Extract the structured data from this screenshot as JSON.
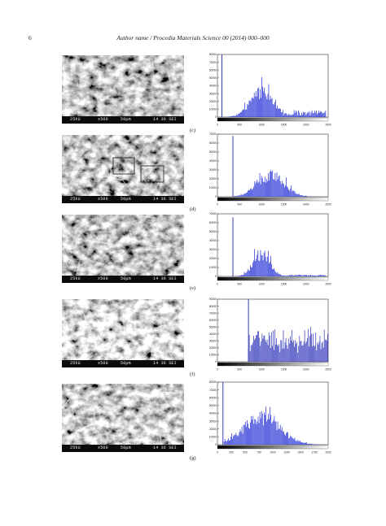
{
  "header": {
    "page_number": "6",
    "running_title": "Author name / Procedia Materials Science 00 (2014) 000–000"
  },
  "panels": [
    {
      "label": "(c)",
      "sem_bar": {
        "kv": "25kU",
        "mag": "x500",
        "scale": "50µm",
        "code": "14 36 SEI"
      }
    },
    {
      "label": "(d)",
      "sem_bar": {
        "kv": "25kU",
        "mag": "x500",
        "scale": "50µm",
        "code": "14 36 SEI"
      }
    },
    {
      "label": "(e)",
      "sem_bar": {
        "kv": "25kU",
        "mag": "x500",
        "scale": "50µm",
        "code": "14 36 SEI"
      }
    },
    {
      "label": "(f)",
      "sem_bar": {
        "kv": "25kU",
        "mag": "x500",
        "scale": "50µm",
        "code": "14 36 SEI"
      }
    },
    {
      "label": "(g)",
      "sem_bar": {
        "kv": "25kU",
        "mag": "x500",
        "scale": "50µm",
        "code": "14 36 SEI"
      }
    }
  ],
  "chart_data": [
    {
      "type": "bar",
      "panel": "(c)",
      "color": "#1f2bd6",
      "xlim": [
        0,
        2500
      ],
      "x_ticks": [
        0,
        500,
        1000,
        1500,
        2000,
        2500
      ],
      "ylim": [
        0,
        80000
      ],
      "y_ticks": [
        0,
        10000,
        20000,
        30000,
        40000,
        50000,
        60000,
        70000,
        80000
      ],
      "spike_x": 100,
      "spike_value": 80000,
      "hump_center": 1000,
      "hump_width": 550,
      "hump_peak": 38000,
      "hump_range": [
        100,
        1500
      ],
      "tail_value": 7000,
      "tail_range": [
        1500,
        2450
      ]
    },
    {
      "type": "bar",
      "panel": "(d)",
      "color": "#1f2bd6",
      "xlim": [
        0,
        2500
      ],
      "x_ticks": [
        0,
        500,
        1000,
        1500,
        2000,
        2500
      ],
      "ylim": [
        0,
        70000
      ],
      "y_ticks": [
        0,
        10000,
        20000,
        30000,
        40000,
        50000,
        60000,
        70000
      ],
      "spike_x": 350,
      "spike_value": 68000,
      "hump_center": 1200,
      "hump_width": 650,
      "hump_peak": 30000,
      "hump_range": [
        380,
        2500
      ],
      "tail_value": 0,
      "tail_range": [
        2500,
        2500
      ]
    },
    {
      "type": "bar",
      "panel": "(e)",
      "color": "#1f2bd6",
      "xlim": [
        0,
        2500
      ],
      "x_ticks": [
        0,
        500,
        1000,
        1500,
        2000,
        2500
      ],
      "ylim": [
        0,
        70000
      ],
      "y_ticks": [
        0,
        10000,
        20000,
        30000,
        40000,
        50000,
        60000,
        70000
      ],
      "spike_x": 350,
      "spike_value": 66000,
      "hump_center": 1000,
      "hump_width": 400,
      "hump_peak": 32000,
      "hump_range": [
        300,
        1550
      ],
      "tail_value": 1500,
      "tail_range": [
        1550,
        2450
      ]
    },
    {
      "type": "bar",
      "panel": "(f)",
      "color": "#2a30b8",
      "xlim": [
        0,
        2500
      ],
      "x_ticks": [
        0,
        500,
        1000,
        1500,
        2000,
        2500
      ],
      "ylim": [
        0,
        90000
      ],
      "y_ticks": [
        0,
        10000,
        20000,
        30000,
        40000,
        50000,
        60000,
        70000,
        80000,
        90000
      ],
      "spike_x": 700,
      "spike_value": 90000,
      "hump_center": 1500,
      "hump_width": 2000,
      "hump_peak": 50000,
      "hump_range": [
        700,
        2500
      ],
      "tail_value": 0,
      "tail_range": [
        2500,
        2500
      ]
    },
    {
      "type": "bar",
      "panel": "(g)",
      "color": "#1f2bd6",
      "xlim": [
        0,
        2000
      ],
      "x_ticks": [
        0,
        250,
        500,
        750,
        1000,
        1250,
        1500,
        1750,
        2000
      ],
      "ylim": [
        0,
        80000
      ],
      "y_ticks": [
        0,
        10000,
        20000,
        30000,
        40000,
        50000,
        60000,
        70000,
        80000
      ],
      "spike_x": 100,
      "spike_value": 80000,
      "hump_center": 800,
      "hump_width": 700,
      "hump_peak": 42000,
      "hump_range": [
        120,
        2000
      ],
      "tail_value": 0,
      "tail_range": [
        2000,
        2000
      ]
    }
  ]
}
